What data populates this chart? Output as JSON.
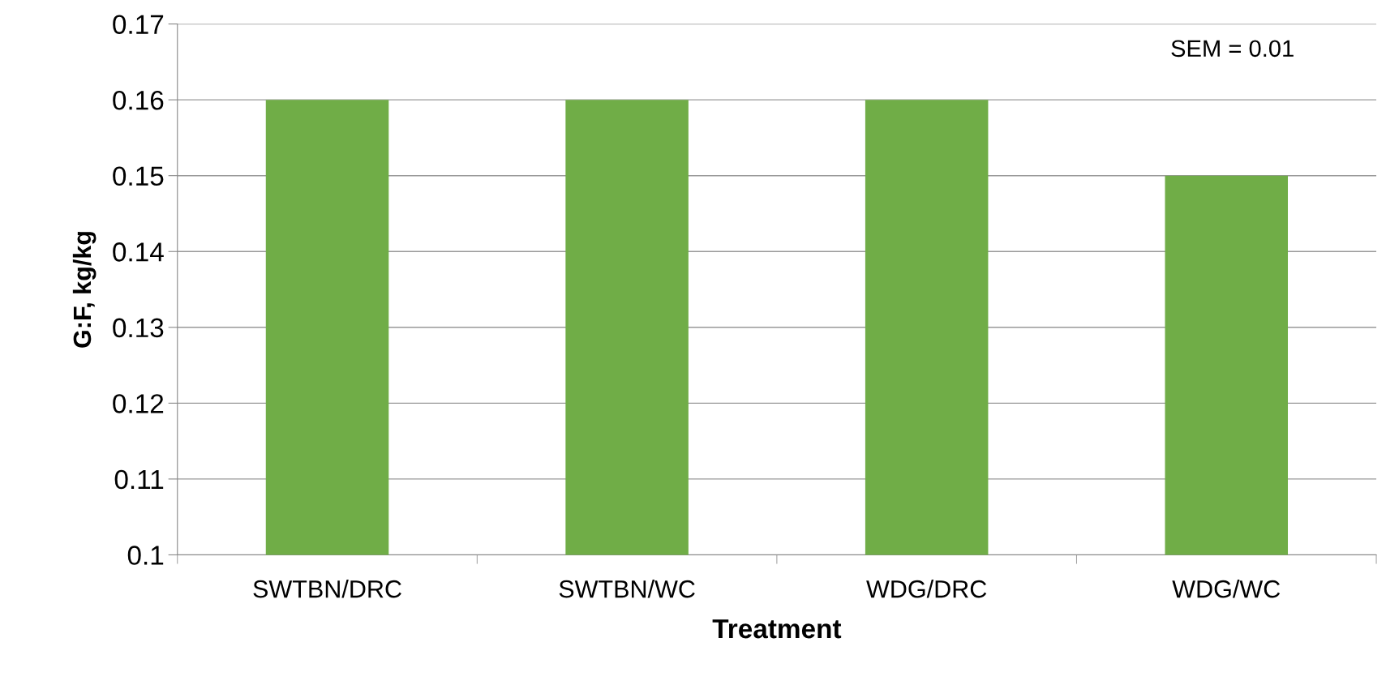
{
  "chart_data": {
    "type": "bar",
    "xlabel": "Treatment",
    "ylabel": "G:F, kg/kg",
    "categories": [
      "SWTBN/DRC",
      "SWTBN/WC",
      "WDG/DRC",
      "WDG/WC"
    ],
    "values": [
      0.16,
      0.16,
      0.16,
      0.15
    ],
    "color": "#70ad47",
    "ylim": [
      0.1,
      0.17
    ],
    "yticks": [
      0.1,
      0.11,
      0.12,
      0.13,
      0.14,
      0.15,
      0.16,
      0.17
    ],
    "grid": "y",
    "legend": false,
    "annotations": [
      "SEM = 0.01"
    ]
  }
}
